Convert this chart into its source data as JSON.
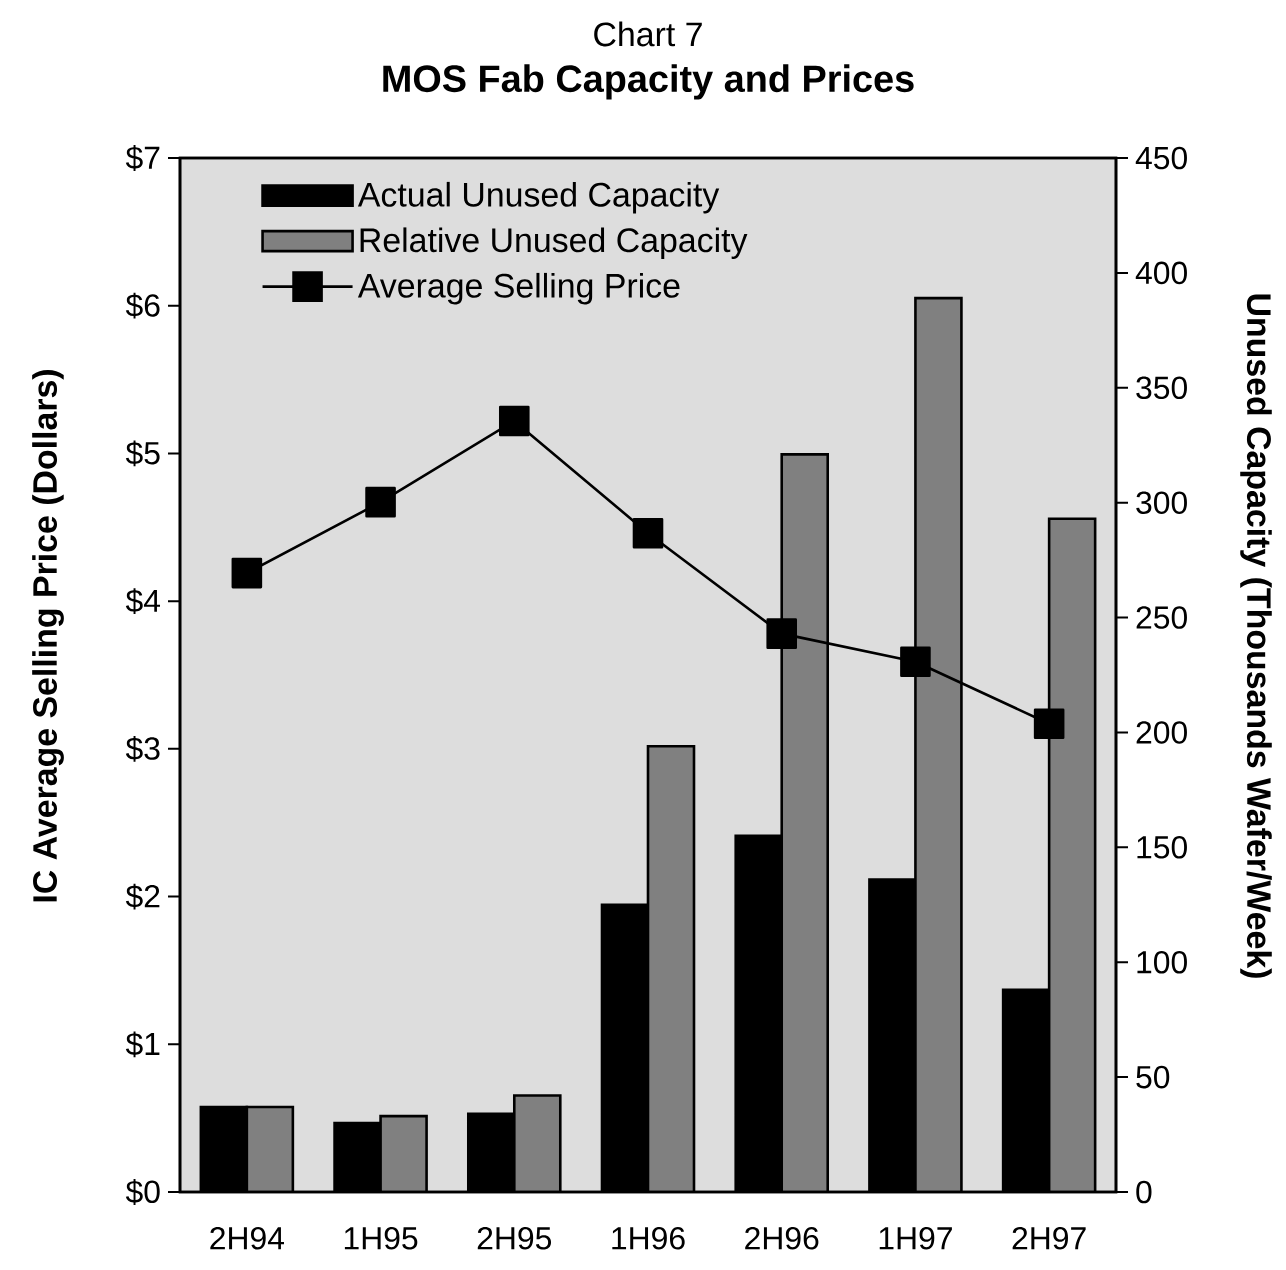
{
  "chart_data": {
    "type": "bar",
    "subtitle": "Chart 7",
    "title": "MOS Fab Capacity and Prices",
    "ylabel": "IC Average Selling Price (Dollars)",
    "y2label": "Unused Capacity (Thousands Wafer/Week)",
    "categories": [
      "2H94",
      "1H95",
      "2H95",
      "1H96",
      "2H96",
      "1H97",
      "2H97"
    ],
    "series": [
      {
        "name": "Actual Unused Capacity",
        "axis": "y2",
        "color": "#000000",
        "values": [
          37,
          30,
          34,
          125,
          155,
          136,
          88
        ]
      },
      {
        "name": "Relative Unused Capacity",
        "axis": "y2",
        "color": "#808080",
        "values": [
          37,
          33,
          42,
          194,
          321,
          389,
          293
        ]
      },
      {
        "name": "Average Selling Price",
        "type": "line",
        "color": "#000000",
        "marker": "square",
        "values": [
          4.19,
          4.67,
          5.22,
          4.46,
          3.78,
          3.59,
          3.17
        ]
      }
    ],
    "ylim": [
      0,
      7
    ],
    "yticks": [
      {
        "value": 0,
        "label": "$0"
      },
      {
        "value": 1,
        "label": "$1"
      },
      {
        "value": 2,
        "label": "$2"
      },
      {
        "value": 3,
        "label": "$3"
      },
      {
        "value": 4,
        "label": "$4"
      },
      {
        "value": 5,
        "label": "$5"
      },
      {
        "value": 6,
        "label": "$6"
      },
      {
        "value": 7,
        "label": "$7"
      }
    ],
    "y2lim": [
      0,
      450
    ],
    "y2ticks": [
      0,
      50,
      100,
      150,
      200,
      250,
      300,
      350,
      400,
      450
    ],
    "legend": "top left"
  }
}
